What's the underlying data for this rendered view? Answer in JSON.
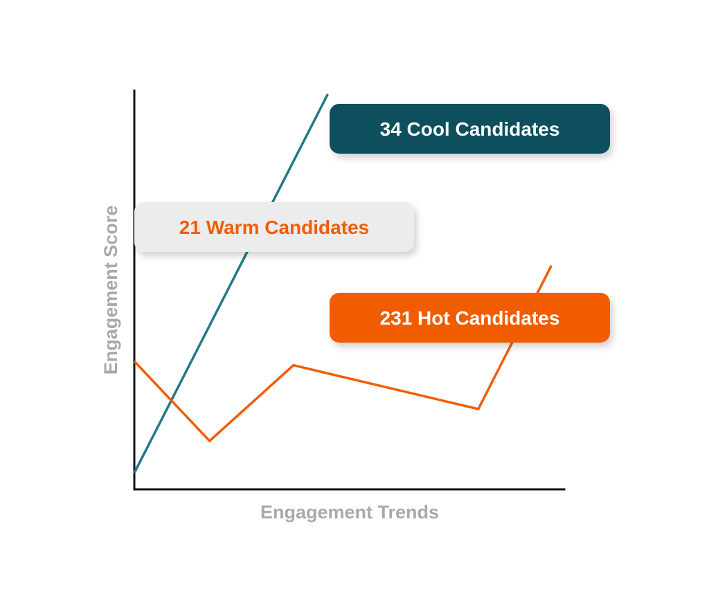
{
  "chart_data": {
    "type": "line",
    "xlabel": "Engagement Trends",
    "ylabel": "Engagement Score",
    "grid": false,
    "xlim": [
      0,
      100
    ],
    "ylim": [
      0,
      100
    ],
    "series": [
      {
        "color": "#1f7a86",
        "x": [
          0,
          45
        ],
        "y": [
          5,
          100
        ]
      },
      {
        "color": "#f25c05",
        "x": [
          0,
          17.5,
          37,
          80,
          97
        ],
        "y": [
          33,
          13,
          32,
          21,
          57
        ]
      }
    ],
    "annotations": [
      {
        "text": "34 Cool Candidates",
        "background": "#0e4f5c",
        "text_color": "#ffffff"
      },
      {
        "text": "21 Warm Candidates",
        "background": "#ececec",
        "text_color": "#f25c05"
      },
      {
        "text": "231 Hot Candidates",
        "background": "#f25c05",
        "text_color": "#ffffff"
      }
    ],
    "colors": {
      "axis": "#111111",
      "axis_label": "#a9a9a9"
    }
  }
}
